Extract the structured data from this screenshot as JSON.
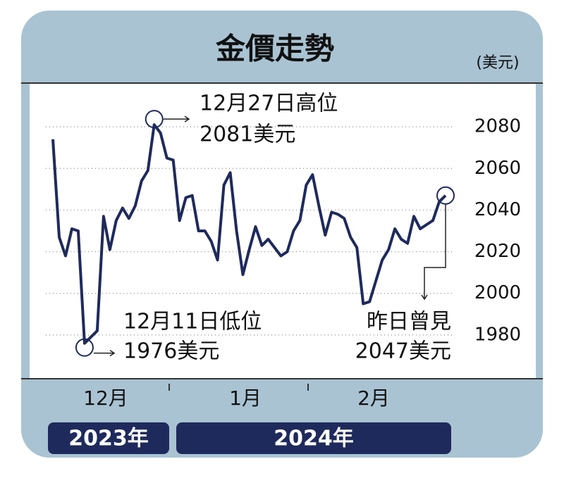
{
  "chart_data": {
    "type": "line",
    "title": "金價走勢",
    "unit": "(美元)",
    "values": [
      2074,
      2027,
      2018,
      2031,
      2030,
      1976,
      1979,
      1982,
      2037,
      2021,
      2035,
      2041,
      2036,
      2042,
      2054,
      2059,
      2081,
      2077,
      2065,
      2064,
      2035,
      2046,
      2047,
      2030,
      2030,
      2025,
      2016,
      2052,
      2058,
      2030,
      2009,
      2021,
      2032,
      2023,
      2026,
      2022,
      2018,
      2020,
      2030,
      2035,
      2052,
      2057,
      2042,
      2028,
      2039,
      2038,
      2036,
      2027,
      2022,
      1995,
      1996,
      2006,
      2016,
      2021,
      2031,
      2026,
      2024,
      2037,
      2031,
      2033,
      2035,
      2044,
      2047
    ],
    "color": "#1f2a5c",
    "ylim": [
      1960,
      2100
    ],
    "yticks": [
      1980,
      2000,
      2020,
      2040,
      2060,
      2080
    ],
    "grid": true,
    "months": [
      "12月",
      "1月",
      "2月"
    ],
    "years": [
      "2023年",
      "2024年"
    ],
    "annotations": {
      "high": [
        "12月27日高位",
        "2081美元"
      ],
      "low": [
        "12月11日低位",
        "1976美元"
      ],
      "latest": [
        "昨日曾見",
        "2047美元"
      ]
    }
  }
}
